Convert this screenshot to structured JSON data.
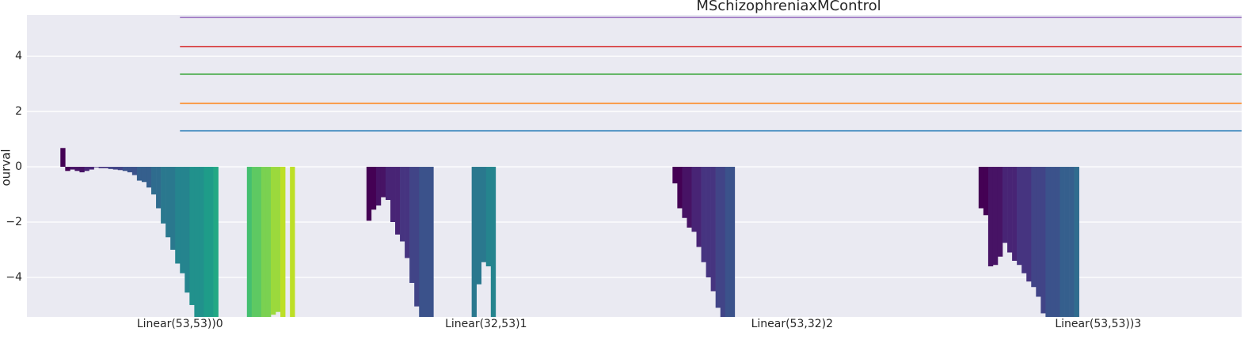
{
  "chart_data": {
    "type": "bar",
    "title": "MSchizophreniaxMControl",
    "ylabel": "ourval",
    "x": [
      7,
      8,
      9,
      10,
      11,
      12,
      13,
      14,
      15,
      16,
      17,
      18,
      19,
      20,
      21,
      22,
      23,
      24,
      25,
      26,
      27,
      28,
      29,
      30,
      31,
      32,
      33,
      34,
      35,
      36,
      37,
      38,
      39,
      46,
      47,
      48,
      49,
      50,
      51,
      52,
      53,
      55,
      71,
      72,
      73,
      74,
      75,
      76,
      77,
      78,
      79,
      80,
      81,
      82,
      83,
      84,
      93,
      94,
      95,
      96,
      97,
      135,
      136,
      137,
      138,
      139,
      140,
      141,
      142,
      143,
      144,
      145,
      146,
      147,
      199,
      200,
      201,
      202,
      203,
      204,
      205,
      206,
      207,
      208,
      209,
      210,
      211,
      212,
      213,
      214,
      215,
      216,
      217,
      218,
      219
    ],
    "values": [
      0.68,
      -0.15,
      -0.1,
      -0.15,
      -0.2,
      -0.15,
      -0.1,
      -0.02,
      -0.05,
      -0.05,
      -0.08,
      -0.1,
      -0.12,
      -0.15,
      -0.2,
      -0.3,
      -0.5,
      -0.55,
      -0.75,
      -1.0,
      -1.5,
      -2.05,
      -2.55,
      -3.0,
      -3.5,
      -3.85,
      -4.55,
      -5.0,
      -5.5,
      -5.5,
      -5.5,
      -5.5,
      -5.5,
      -5.5,
      -5.5,
      -5.5,
      -5.5,
      -5.5,
      -5.35,
      -5.25,
      -5.5,
      -5.5,
      -1.95,
      -1.55,
      -1.4,
      -1.1,
      -1.2,
      -2.0,
      -2.45,
      -2.7,
      -3.3,
      -4.2,
      -5.05,
      -5.5,
      -5.5,
      -5.5,
      -5.5,
      -4.25,
      -3.45,
      -3.6,
      -5.5,
      -0.6,
      -1.5,
      -1.85,
      -2.2,
      -2.35,
      -2.9,
      -3.45,
      -4.0,
      -4.5,
      -5.1,
      -5.5,
      -5.5,
      -5.5,
      -1.5,
      -1.75,
      -3.6,
      -3.55,
      -3.25,
      -2.75,
      -3.1,
      -3.4,
      -3.55,
      -3.85,
      -4.15,
      -4.35,
      -4.7,
      -5.3,
      -5.5,
      -5.5,
      -5.5,
      -5.5,
      -5.5,
      -5.5,
      -5.5
    ],
    "colors": [
      "#440154",
      "#440154",
      "#471365",
      "#471365",
      "#471365",
      "#482475",
      "#482475",
      "#463480",
      "#463480",
      "#463480",
      "#414487",
      "#414487",
      "#414487",
      "#3b528b",
      "#3b528b",
      "#3b528b",
      "#355f8d",
      "#355f8d",
      "#355f8d",
      "#2f6c8e",
      "#2f6c8e",
      "#2a788e",
      "#2a788e",
      "#2a788e",
      "#25848e",
      "#25848e",
      "#25848e",
      "#21918c",
      "#21918c",
      "#21918c",
      "#1e9c89",
      "#1e9c89",
      "#22a884",
      "#44bf70",
      "#5ec962",
      "#5ec962",
      "#7ad151",
      "#7ad151",
      "#9bd93c",
      "#9bd93c",
      "#bddf26",
      "#bddf26",
      "#440154",
      "#440154",
      "#471365",
      "#471365",
      "#482475",
      "#482475",
      "#482475",
      "#463480",
      "#463480",
      "#414487",
      "#414487",
      "#3b528b",
      "#3b528b",
      "#3b528b",
      "#2a788e",
      "#2a788e",
      "#2a788e",
      "#25848e",
      "#25848e",
      "#440154",
      "#440154",
      "#471365",
      "#471365",
      "#482475",
      "#482475",
      "#463480",
      "#463480",
      "#463480",
      "#414487",
      "#414487",
      "#3b528b",
      "#3b528b",
      "#440154",
      "#440154",
      "#471365",
      "#471365",
      "#471365",
      "#482475",
      "#482475",
      "#482475",
      "#463480",
      "#463480",
      "#463480",
      "#414487",
      "#414487",
      "#414487",
      "#3b528b",
      "#3b528b",
      "#3b528b",
      "#355f8d",
      "#355f8d",
      "#355f8d",
      "#2f6c8e"
    ],
    "xlim": [
      0,
      254
    ],
    "xticks": [
      {
        "value": 32,
        "label": "Linear(53,53))0"
      },
      {
        "value": 96,
        "label": "Linear(32,53)1"
      },
      {
        "value": 160,
        "label": "Linear(53,32)2"
      },
      {
        "value": 224,
        "label": "Linear(53,53))3"
      }
    ],
    "ylim": [
      -5.43,
      5.49
    ],
    "yticks": [
      {
        "value": -4,
        "label": "−4"
      },
      {
        "value": -2,
        "label": "−2"
      },
      0,
      2,
      4
    ],
    "grid": true,
    "hlines": {
      "from_x": 32,
      "values": [
        1.3,
        2.3,
        3.35,
        4.35,
        5.4
      ],
      "colors": [
        "#1f77b4",
        "#ff7f0e",
        "#2ca02c",
        "#d62728",
        "#9467bd"
      ]
    }
  }
}
